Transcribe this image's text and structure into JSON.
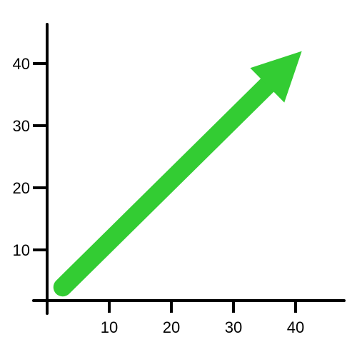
{
  "chart_data": {
    "type": "line",
    "title": "",
    "xlabel": "",
    "ylabel": "",
    "xlim": [
      -1,
      48
    ],
    "ylim": [
      2,
      52
    ],
    "x_ticks": [
      10,
      20,
      30,
      40
    ],
    "y_ticks": [
      10,
      20,
      30,
      40
    ],
    "x_tick_labels": [
      "10",
      "20",
      "30",
      "40"
    ],
    "y_tick_labels": [
      "10",
      "20",
      "30",
      "40"
    ],
    "grid": false,
    "legend": "none",
    "series": [
      {
        "x": [
          2.5,
          41
        ],
        "y": [
          4,
          42
        ],
        "color": "#33cc33",
        "marker": "arrow-head"
      }
    ],
    "colors": {
      "axis": "#000000",
      "arrow": "#33cc33"
    }
  }
}
